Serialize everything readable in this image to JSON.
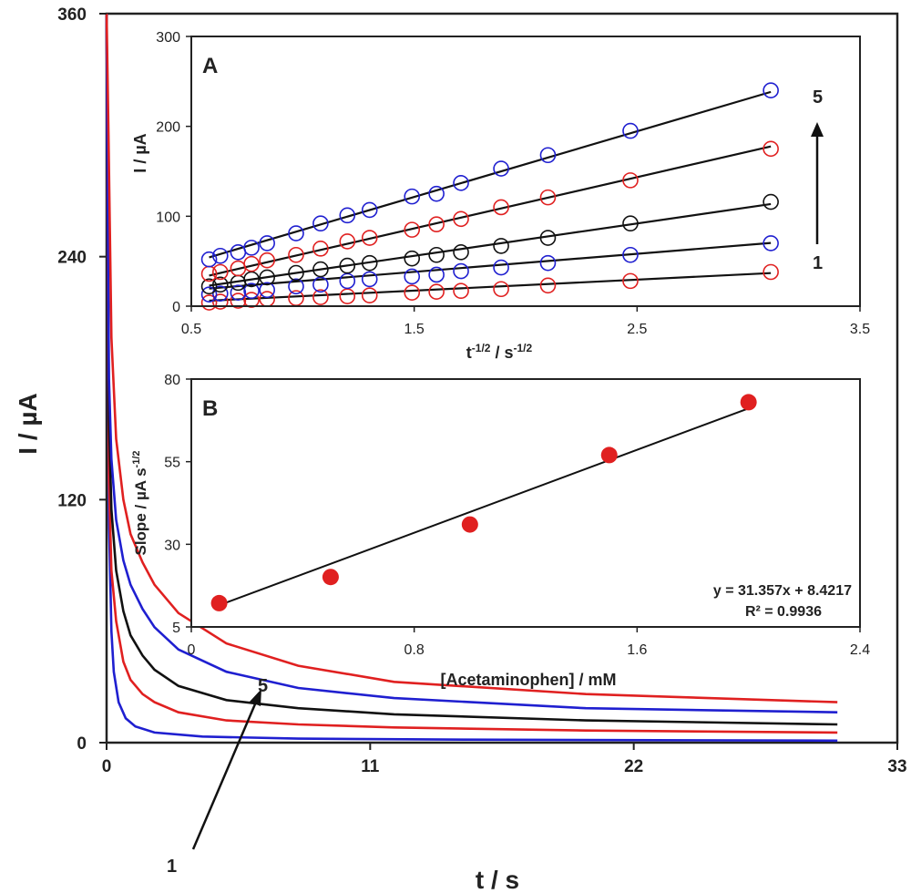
{
  "chart_data": [
    {
      "id": "main",
      "type": "line",
      "xlabel": "t / s",
      "ylabel": "I / µA",
      "xlim": [
        0,
        33
      ],
      "ylim": [
        0,
        360
      ],
      "xticks": [
        0,
        11,
        22,
        33
      ],
      "yticks": [
        0,
        120,
        240,
        360
      ],
      "series": [
        {
          "color": "#1f1fd0",
          "points": [
            [
              0,
              360
            ],
            [
              0.1,
              110
            ],
            [
              0.2,
              55
            ],
            [
              0.3,
              35
            ],
            [
              0.5,
              20
            ],
            [
              0.8,
              12
            ],
            [
              1.2,
              8
            ],
            [
              2,
              5
            ],
            [
              4,
              3
            ],
            [
              8,
              2
            ],
            [
              15,
              1.5
            ],
            [
              30.5,
              1
            ]
          ]
        },
        {
          "color": "#e02020",
          "points": [
            [
              0,
              360
            ],
            [
              0.1,
              130
            ],
            [
              0.2,
              85
            ],
            [
              0.4,
              60
            ],
            [
              0.7,
              40
            ],
            [
              1,
              31
            ],
            [
              1.5,
              24
            ],
            [
              2,
              20
            ],
            [
              3,
              15
            ],
            [
              5,
              11
            ],
            [
              8,
              9
            ],
            [
              12,
              7.5
            ],
            [
              20,
              6
            ],
            [
              30.5,
              5
            ]
          ]
        },
        {
          "color": "#111111",
          "points": [
            [
              0,
              360
            ],
            [
              0.1,
              160
            ],
            [
              0.2,
              115
            ],
            [
              0.4,
              85
            ],
            [
              0.7,
              65
            ],
            [
              1,
              53
            ],
            [
              1.5,
              43
            ],
            [
              2,
              36
            ],
            [
              3,
              28
            ],
            [
              5,
              21
            ],
            [
              8,
              17
            ],
            [
              12,
              14
            ],
            [
              20,
              11
            ],
            [
              30.5,
              9
            ]
          ]
        },
        {
          "color": "#1f1fd0",
          "points": [
            [
              0,
              360
            ],
            [
              0.1,
              180
            ],
            [
              0.2,
              140
            ],
            [
              0.4,
              110
            ],
            [
              0.7,
              90
            ],
            [
              1,
              78
            ],
            [
              1.5,
              66
            ],
            [
              2,
              57
            ],
            [
              3,
              46
            ],
            [
              5,
              35
            ],
            [
              8,
              27
            ],
            [
              12,
              22
            ],
            [
              20,
              17
            ],
            [
              30.5,
              15
            ]
          ]
        },
        {
          "color": "#e02020",
          "points": [
            [
              0,
              360
            ],
            [
              0.08,
              300
            ],
            [
              0.2,
              200
            ],
            [
              0.4,
              150
            ],
            [
              0.7,
              120
            ],
            [
              1,
              103
            ],
            [
              1.5,
              89
            ],
            [
              2,
              78
            ],
            [
              3,
              64
            ],
            [
              5,
              49
            ],
            [
              8,
              38
            ],
            [
              12,
              30
            ],
            [
              20,
              24
            ],
            [
              30.5,
              20
            ]
          ]
        }
      ],
      "annotation_start": "1",
      "annotation_end": "5"
    },
    {
      "id": "inset-a",
      "type": "scatter",
      "panel_label": "A",
      "xlabel": "t -1/2 / s-1/2",
      "xlabel_main": "t",
      "xlabel_sup1": "-1/2",
      "xlabel_mid": " / s",
      "xlabel_sup2": "-1/2",
      "ylabel": "I / µA",
      "xlim": [
        0.5,
        3.5
      ],
      "ylim": [
        0,
        300
      ],
      "xticks": [
        "0.5",
        "1.5",
        "2.5",
        "3.5"
      ],
      "yticks": [
        "0",
        "100",
        "200",
        "300"
      ],
      "x": [
        0.58,
        0.63,
        0.71,
        0.77,
        0.84,
        0.97,
        1.08,
        1.2,
        1.3,
        1.49,
        1.6,
        1.71,
        1.89,
        2.1,
        2.47,
        3.1
      ],
      "series": [
        {
          "color": "#e02020",
          "slope": 12.2,
          "intercept": -1,
          "values": [
            4,
            5,
            6,
            7,
            8,
            9,
            10,
            11,
            12,
            15,
            16,
            17,
            19,
            23,
            28,
            38
          ]
        },
        {
          "color": "#1f1fd0",
          "slope": 20.1,
          "intercept": 8,
          "values": [
            13,
            14,
            15,
            17,
            18,
            22,
            24,
            28,
            30,
            33,
            35,
            39,
            43,
            48,
            57,
            70
          ]
        },
        {
          "color": "#111111",
          "slope": 36,
          "intercept": 2,
          "values": [
            22,
            24,
            26,
            30,
            32,
            37,
            41,
            45,
            48,
            53,
            57,
            60,
            67,
            76,
            92,
            116
          ]
        },
        {
          "color": "#e02020",
          "slope": 57,
          "intercept": 1,
          "values": [
            36,
            38,
            42,
            47,
            51,
            57,
            64,
            72,
            76,
            85,
            91,
            97,
            110,
            121,
            140,
            175
          ]
        },
        {
          "color": "#1f1fd0",
          "slope": 73,
          "intercept": 12,
          "values": [
            52,
            56,
            60,
            65,
            70,
            81,
            92,
            101,
            107,
            122,
            125,
            137,
            153,
            168,
            195,
            240
          ]
        }
      ],
      "annotation_bottom": "1",
      "annotation_top": "5"
    },
    {
      "id": "inset-b",
      "type": "scatter",
      "panel_label": "B",
      "xlabel": "[Acetaminophen] / mM",
      "ylabel": "Slope / µA s-1/2",
      "ylabel_main": "Slope / µA s",
      "ylabel_sup": "-1/2",
      "xlim": [
        0,
        2.4
      ],
      "ylim": [
        5,
        80
      ],
      "xticks": [
        "0",
        "0.8",
        "1.6",
        "2.4"
      ],
      "yticks": [
        "5",
        "30",
        "55",
        "80"
      ],
      "x": [
        0.1,
        0.5,
        1,
        1.5,
        2
      ],
      "values": [
        12.2,
        20.1,
        36,
        57,
        73
      ],
      "color": "#e02020",
      "fit": {
        "slope": 31.357,
        "intercept": 8.4217
      },
      "equation": "y = 31.357x  + 8.4217",
      "r2": "R² = 0.9936"
    }
  ]
}
